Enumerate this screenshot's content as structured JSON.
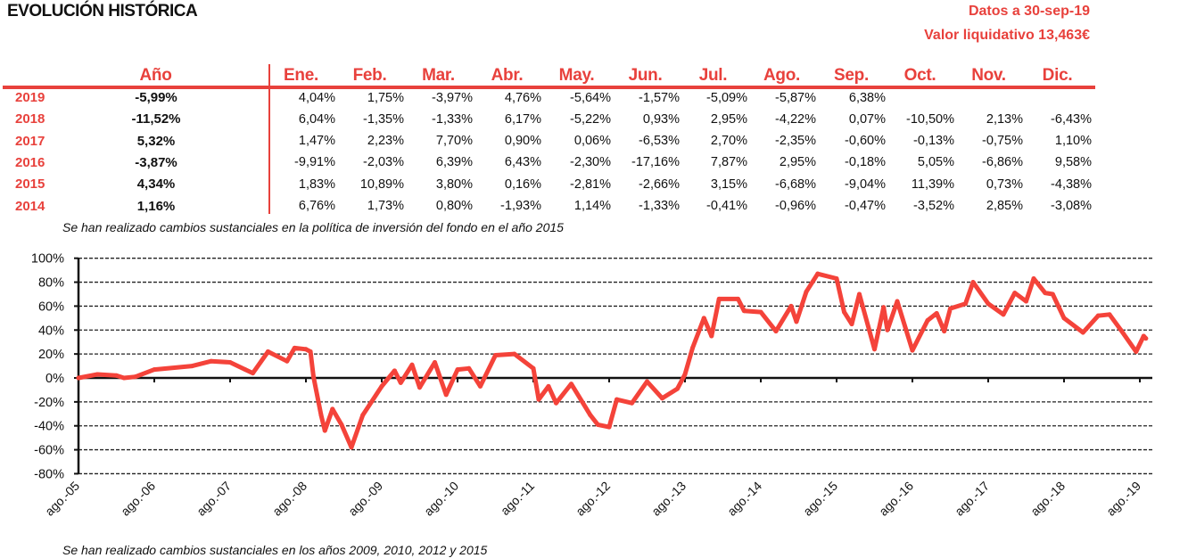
{
  "header": {
    "title": "EVOLUCIÓN HISTÓRICA",
    "date_label": "Datos a 30-sep-19",
    "nav_label": "Valor liquidativo 13,463€"
  },
  "table": {
    "year_header": "Año",
    "months": [
      "Ene.",
      "Feb.",
      "Mar.",
      "Abr.",
      "May.",
      "Jun.",
      "Jul.",
      "Ago.",
      "Sep.",
      "Oct.",
      "Nov.",
      "Dic."
    ],
    "rows": [
      {
        "year": "2019",
        "annual": "-5,99%",
        "monthly": [
          "4,04%",
          "1,75%",
          "-3,97%",
          "4,76%",
          "-5,64%",
          "-1,57%",
          "-5,09%",
          "-5,87%",
          "6,38%",
          "",
          "",
          ""
        ]
      },
      {
        "year": "2018",
        "annual": "-11,52%",
        "monthly": [
          "6,04%",
          "-1,35%",
          "-1,33%",
          "6,17%",
          "-5,22%",
          "0,93%",
          "2,95%",
          "-4,22%",
          "0,07%",
          "-10,50%",
          "2,13%",
          "-6,43%"
        ]
      },
      {
        "year": "2017",
        "annual": "5,32%",
        "monthly": [
          "1,47%",
          "2,23%",
          "7,70%",
          "0,90%",
          "0,06%",
          "-6,53%",
          "2,70%",
          "-2,35%",
          "-0,60%",
          "-0,13%",
          "-0,75%",
          "1,10%"
        ]
      },
      {
        "year": "2016",
        "annual": "-3,87%",
        "monthly": [
          "-9,91%",
          "-2,03%",
          "6,39%",
          "6,43%",
          "-2,30%",
          "-17,16%",
          "7,87%",
          "2,95%",
          "-0,18%",
          "5,05%",
          "-6,86%",
          "9,58%"
        ]
      },
      {
        "year": "2015",
        "annual": "4,34%",
        "monthly": [
          "1,83%",
          "10,89%",
          "3,80%",
          "0,16%",
          "-2,81%",
          "-2,66%",
          "3,15%",
          "-6,68%",
          "-9,04%",
          "11,39%",
          "0,73%",
          "-4,38%"
        ]
      },
      {
        "year": "2014",
        "annual": "1,16%",
        "monthly": [
          "6,76%",
          "1,73%",
          "0,80%",
          "-1,93%",
          "1,14%",
          "-1,33%",
          "-0,41%",
          "-0,96%",
          "-0,47%",
          "-3,52%",
          "2,85%",
          "-3,08%"
        ]
      }
    ],
    "note": "Se han realizado cambios sustanciales en la política de inversión del fondo en el año 2015"
  },
  "chart_data": {
    "type": "line",
    "title": "",
    "xlabel": "",
    "ylabel": "",
    "x_unit": "years since ago.05",
    "ylim": [
      -80,
      100
    ],
    "yticks": [
      100,
      80,
      60,
      40,
      20,
      0,
      -20,
      -40,
      -60,
      -80
    ],
    "ytick_labels": [
      "100%",
      "80%",
      "60%",
      "40%",
      "20%",
      "0%",
      "-20%",
      "-40%",
      "-60%",
      "-80%"
    ],
    "xtick_labels": [
      "ago.-05",
      "ago.-06",
      "ago.-07",
      "ago.-08",
      "ago.-09",
      "ago.-10",
      "ago.-11",
      "ago.-12",
      "ago.-13",
      "ago.-14",
      "ago.-15",
      "ago.-16",
      "ago.-17",
      "ago.-18",
      "ago.-19"
    ],
    "grid": true,
    "color": "#f4433a",
    "series": [
      {
        "name": "Evolución",
        "x": [
          0,
          0.25,
          0.5,
          0.6,
          0.75,
          1.0,
          1.5,
          1.75,
          2.0,
          2.2,
          2.3,
          2.5,
          2.75,
          2.85,
          3.0,
          3.06,
          3.1,
          3.2,
          3.25,
          3.35,
          3.47,
          3.6,
          3.75,
          4.0,
          4.17,
          4.25,
          4.4,
          4.5,
          4.7,
          4.85,
          5.0,
          5.15,
          5.3,
          5.5,
          5.75,
          6.0,
          6.07,
          6.2,
          6.3,
          6.5,
          6.75,
          6.85,
          7.0,
          7.1,
          7.3,
          7.5,
          7.7,
          7.9,
          8.0,
          8.1,
          8.25,
          8.35,
          8.45,
          8.7,
          8.78,
          9.0,
          9.2,
          9.4,
          9.47,
          9.6,
          9.75,
          10.0,
          10.1,
          10.2,
          10.3,
          10.5,
          10.62,
          10.67,
          10.8,
          11.0,
          11.2,
          11.32,
          11.42,
          11.5,
          11.7,
          11.8,
          12.0,
          12.2,
          12.35,
          12.5,
          12.6,
          12.75,
          12.85,
          13.0,
          13.25,
          13.45,
          13.6,
          13.75,
          13.95,
          14.05,
          14.08
        ],
        "y": [
          0,
          3,
          2,
          0,
          1,
          7,
          10,
          14,
          13,
          7,
          4,
          22,
          14,
          25,
          24,
          22,
          1,
          -31,
          -44,
          -26,
          -39,
          -58,
          -31,
          -7,
          6,
          -4,
          11,
          -8,
          13,
          -14,
          7,
          8,
          -7,
          19,
          20,
          8,
          -18,
          -7,
          -21,
          -5,
          -31,
          -39,
          -41,
          -18,
          -21,
          -3,
          -17,
          -9,
          3,
          25,
          50,
          35,
          66,
          66,
          56,
          55,
          39,
          60,
          47,
          72,
          87,
          83,
          55,
          45,
          70,
          24,
          59,
          40,
          64,
          23,
          48,
          54,
          39,
          58,
          62,
          80,
          62,
          53,
          71,
          64,
          83,
          71,
          70,
          50,
          38,
          52,
          53,
          40,
          22,
          35,
          33
        ]
      }
    ]
  },
  "chart_note": "Se han realizado cambios sustanciales en los años 2009, 2010, 2012 y 2015"
}
